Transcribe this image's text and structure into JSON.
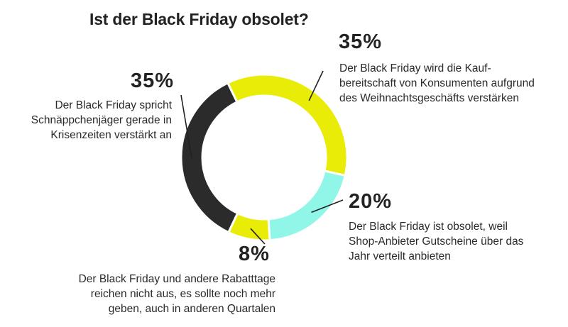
{
  "chart_data": {
    "type": "pie",
    "variant": "donut",
    "title": "Ist der Black Friday obsolet?",
    "slices": [
      {
        "value": 35,
        "label": "35%",
        "color": "#e8ec06",
        "text_lines": [
          "Der Black Friday wird die Kauf-",
          "bereitschaft von Konsumenten aufgrund",
          "des Weihnachtsgeschäfts verstärken"
        ]
      },
      {
        "value": 20,
        "label": "20%",
        "color": "#90f7e8",
        "text_lines": [
          "Der Black Friday ist obsolet, weil",
          "Shop-Anbieter Gutscheine über das",
          "Jahr verteilt anbieten"
        ]
      },
      {
        "value": 8,
        "label": "8%",
        "color": "#e8ec06",
        "text_lines": [
          "Der Black Friday und andere Rabatttage",
          "reichen nicht aus, es sollte noch mehr",
          "geben, auch in anderen Quartalen"
        ]
      },
      {
        "value": 35,
        "label": "35%",
        "color": "#2b2b2b",
        "text_lines": [
          "Der Black Friday spricht",
          "Schnäppchenjäger gerade in",
          "Krisenzeiten verstärkt an"
        ]
      }
    ]
  }
}
